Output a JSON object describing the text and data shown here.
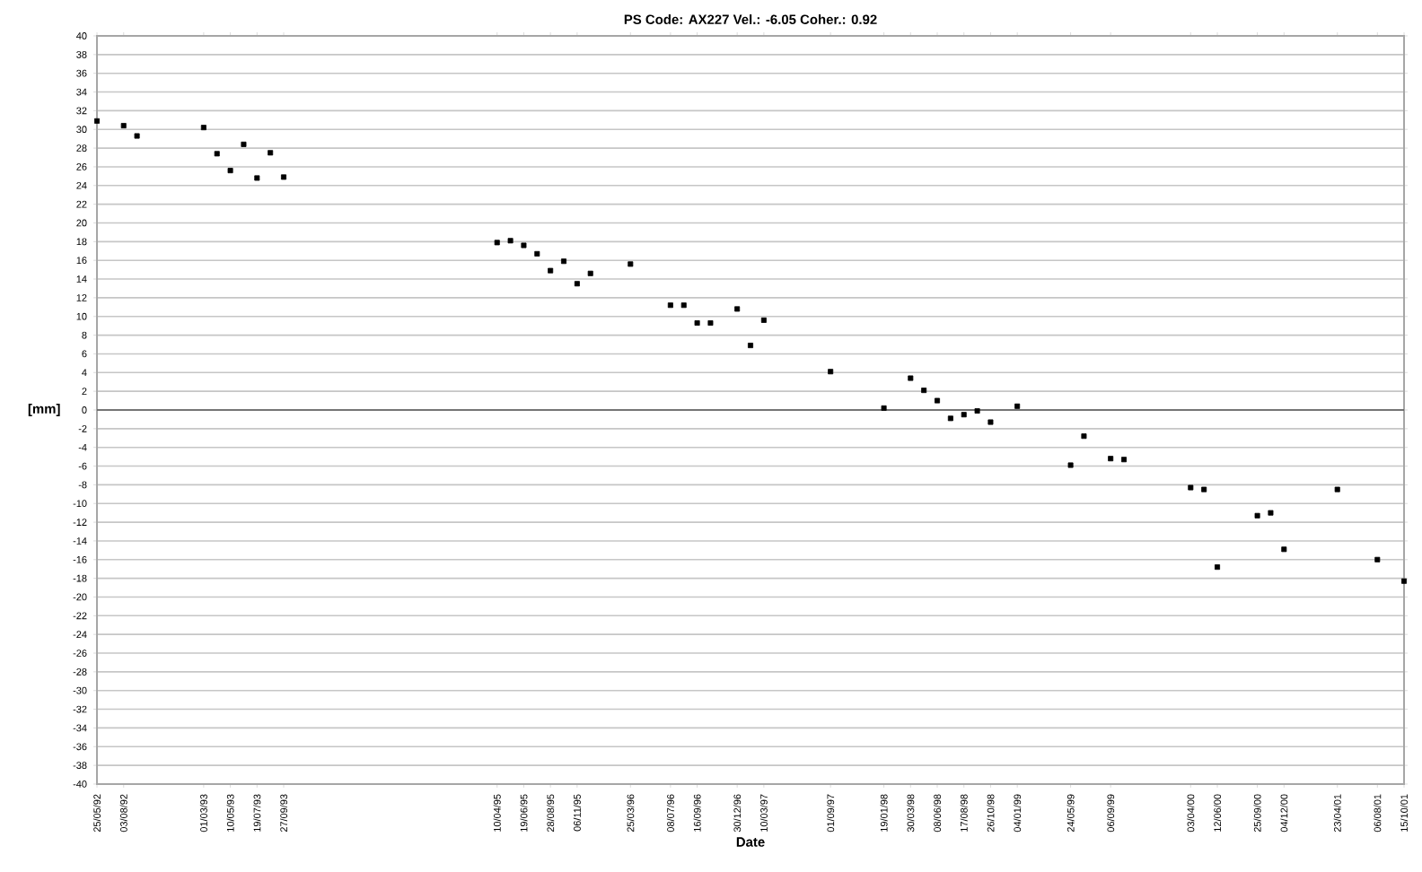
{
  "chart_data": {
    "type": "scatter",
    "title": "PS Code: AX227   Vel.: -6.05   Coher.: 0.92",
    "xlabel": "Date",
    "ylabel": "[mm]",
    "series": [
      {
        "color": "#000000",
        "marker": "square",
        "x": [
          "1992-05-25",
          "1992-08-03",
          "1992-09-07",
          "1993-03-01",
          "1993-04-05",
          "1993-05-10",
          "1993-06-14",
          "1993-07-19",
          "1993-08-23",
          "1993-09-27",
          "1995-04-10",
          "1995-05-15",
          "1995-06-19",
          "1995-07-24",
          "1995-08-28",
          "1995-10-02",
          "1995-11-06",
          "1995-12-11",
          "1996-03-25",
          "1996-07-08",
          "1996-08-12",
          "1996-09-16",
          "1996-10-21",
          "1996-12-30",
          "1997-02-03",
          "1997-03-10",
          "1997-09-01",
          "1998-01-19",
          "1998-03-30",
          "1998-05-04",
          "1998-06-08",
          "1998-07-13",
          "1998-08-17",
          "1998-09-21",
          "1998-10-26",
          "1999-01-04",
          "1999-05-24",
          "1999-06-28",
          "1999-09-06",
          "1999-10-11",
          "2000-04-03",
          "2000-05-08",
          "2000-06-12",
          "2000-09-25",
          "2000-10-30",
          "2000-12-04",
          "2001-04-23",
          "2001-08-06",
          "2001-10-15"
        ],
        "values": [
          30.9,
          30.4,
          29.3,
          30.2,
          27.4,
          25.6,
          28.4,
          24.8,
          27.5,
          24.9,
          17.9,
          18.1,
          17.6,
          16.7,
          14.9,
          15.9,
          13.5,
          14.6,
          15.6,
          11.2,
          11.2,
          9.3,
          9.3,
          10.8,
          6.9,
          9.6,
          4.1,
          0.2,
          3.4,
          2.1,
          1.0,
          -0.9,
          -0.5,
          -0.1,
          -1.3,
          0.4,
          -5.9,
          -2.8,
          -5.2,
          -5.3,
          -8.3,
          -8.5,
          -16.8,
          -11.3,
          -11.0,
          -14.9,
          -8.5,
          -16.0,
          -18.3
        ]
      }
    ],
    "xlim": [
      "1992-05-25",
      "2001-10-15"
    ],
    "ylim": [
      -40,
      40
    ],
    "xticks": [
      {
        "value": "1992-05-25",
        "label": "25/05/92"
      },
      {
        "value": "1992-08-03",
        "label": "03/08/92"
      },
      {
        "value": "1993-03-01",
        "label": "01/03/93"
      },
      {
        "value": "1993-05-10",
        "label": "10/05/93"
      },
      {
        "value": "1993-07-19",
        "label": "19/07/93"
      },
      {
        "value": "1993-09-27",
        "label": "27/09/93"
      },
      {
        "value": "1995-04-10",
        "label": "10/04/95"
      },
      {
        "value": "1995-06-19",
        "label": "19/06/95"
      },
      {
        "value": "1995-08-28",
        "label": "28/08/95"
      },
      {
        "value": "1995-11-06",
        "label": "06/11/95"
      },
      {
        "value": "1996-03-25",
        "label": "25/03/96"
      },
      {
        "value": "1996-07-08",
        "label": "08/07/96"
      },
      {
        "value": "1996-09-16",
        "label": "16/09/96"
      },
      {
        "value": "1996-12-30",
        "label": "30/12/96"
      },
      {
        "value": "1997-03-10",
        "label": "10/03/97"
      },
      {
        "value": "1997-09-01",
        "label": "01/09/97"
      },
      {
        "value": "1998-01-19",
        "label": "19/01/98"
      },
      {
        "value": "1998-03-30",
        "label": "30/03/98"
      },
      {
        "value": "1998-06-08",
        "label": "08/06/98"
      },
      {
        "value": "1998-08-17",
        "label": "17/08/98"
      },
      {
        "value": "1998-10-26",
        "label": "26/10/98"
      },
      {
        "value": "1999-01-04",
        "label": "04/01/99"
      },
      {
        "value": "1999-05-24",
        "label": "24/05/99"
      },
      {
        "value": "1999-09-06",
        "label": "06/09/99"
      },
      {
        "value": "2000-04-03",
        "label": "03/04/00"
      },
      {
        "value": "2000-06-12",
        "label": "12/06/00"
      },
      {
        "value": "2000-09-25",
        "label": "25/09/00"
      },
      {
        "value": "2000-12-04",
        "label": "04/12/00"
      },
      {
        "value": "2001-04-23",
        "label": "23/04/01"
      },
      {
        "value": "2001-08-06",
        "label": "06/08/01"
      },
      {
        "value": "2001-10-15",
        "label": "15/10/01"
      }
    ],
    "yticks": [
      -40,
      -38,
      -36,
      -34,
      -32,
      -30,
      -28,
      -26,
      -24,
      -22,
      -20,
      -18,
      -16,
      -14,
      -12,
      -10,
      -8,
      -6,
      -4,
      -2,
      0,
      2,
      4,
      6,
      8,
      10,
      12,
      14,
      16,
      18,
      20,
      22,
      24,
      26,
      28,
      30,
      32,
      34,
      36,
      38,
      40
    ],
    "ref_lines": [
      {
        "axis": "y",
        "value": 0,
        "color": "#555555"
      }
    ],
    "grid": "y"
  }
}
